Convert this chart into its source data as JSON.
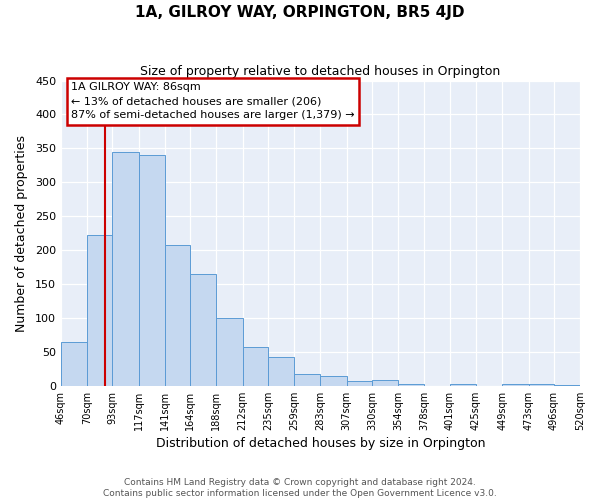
{
  "title": "1A, GILROY WAY, ORPINGTON, BR5 4JD",
  "subtitle": "Size of property relative to detached houses in Orpington",
  "xlabel": "Distribution of detached houses by size in Orpington",
  "ylabel": "Number of detached properties",
  "bin_edges": [
    46,
    70,
    93,
    117,
    141,
    164,
    188,
    212,
    235,
    259,
    283,
    307,
    330,
    354,
    378,
    401,
    425,
    449,
    473,
    496,
    520
  ],
  "bar_heights": [
    65,
    222,
    345,
    340,
    207,
    165,
    100,
    57,
    43,
    18,
    15,
    7,
    8,
    2,
    0,
    3,
    0,
    2,
    2,
    1
  ],
  "bar_color": "#c5d8f0",
  "bar_edge_color": "#5b9bd5",
  "ylim": [
    0,
    450
  ],
  "yticks": [
    0,
    50,
    100,
    150,
    200,
    250,
    300,
    350,
    400,
    450
  ],
  "vline_x": 86,
  "vline_color": "#cc0000",
  "annotation_title": "1A GILROY WAY: 86sqm",
  "annotation_line1": "← 13% of detached houses are smaller (206)",
  "annotation_line2": "87% of semi-detached houses are larger (1,379) →",
  "annotation_box_color": "#cc0000",
  "background_color": "#e8eef8",
  "footer1": "Contains HM Land Registry data © Crown copyright and database right 2024.",
  "footer2": "Contains public sector information licensed under the Open Government Licence v3.0.",
  "tick_labels": [
    "46sqm",
    "70sqm",
    "93sqm",
    "117sqm",
    "141sqm",
    "164sqm",
    "188sqm",
    "212sqm",
    "235sqm",
    "259sqm",
    "283sqm",
    "307sqm",
    "330sqm",
    "354sqm",
    "378sqm",
    "401sqm",
    "425sqm",
    "449sqm",
    "473sqm",
    "496sqm",
    "520sqm"
  ]
}
